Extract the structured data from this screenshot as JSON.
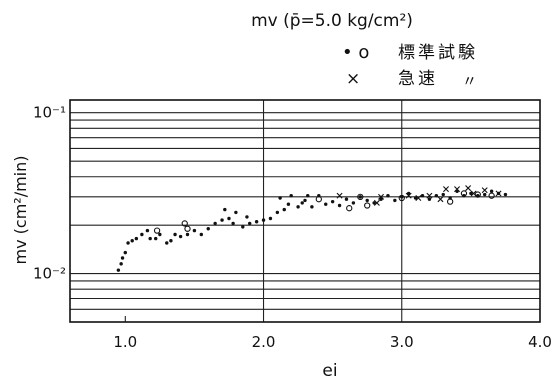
{
  "chart_data": {
    "type": "scatter",
    "title": "mv (p̄=5.0 kg/cm²)",
    "xlabel": "ei",
    "ylabel": "mv (cm²/min)",
    "xlim": [
      0.6,
      4.0
    ],
    "ylim": [
      0.005,
      0.12
    ],
    "y_scale": "log",
    "x_ticks": [
      "1.0",
      "2.0",
      "3.0",
      "4.0"
    ],
    "y_ticks": [
      "10⁻¹",
      "10⁻²"
    ],
    "legend_placement": "top-right",
    "grid": true,
    "series": [
      {
        "name": "標準試験",
        "marker": "dot",
        "values": [
          [
            0.95,
            0.0105
          ],
          [
            0.97,
            0.0115
          ],
          [
            0.98,
            0.0125
          ],
          [
            1.0,
            0.0135
          ],
          [
            1.02,
            0.0155
          ],
          [
            1.05,
            0.016
          ],
          [
            1.08,
            0.0165
          ],
          [
            1.12,
            0.0175
          ],
          [
            1.16,
            0.0185
          ],
          [
            1.18,
            0.0165
          ],
          [
            1.22,
            0.0165
          ],
          [
            1.25,
            0.0175
          ],
          [
            1.3,
            0.0155
          ],
          [
            1.33,
            0.016
          ],
          [
            1.36,
            0.0175
          ],
          [
            1.4,
            0.017
          ],
          [
            1.45,
            0.0175
          ],
          [
            1.5,
            0.0185
          ],
          [
            1.55,
            0.0175
          ],
          [
            1.6,
            0.019
          ],
          [
            1.65,
            0.0205
          ],
          [
            1.7,
            0.0215
          ],
          [
            1.72,
            0.025
          ],
          [
            1.75,
            0.022
          ],
          [
            1.78,
            0.0205
          ],
          [
            1.8,
            0.024
          ],
          [
            1.85,
            0.0195
          ],
          [
            1.88,
            0.0225
          ],
          [
            1.9,
            0.0205
          ],
          [
            1.95,
            0.021
          ],
          [
            2.0,
            0.0215
          ],
          [
            2.05,
            0.022
          ],
          [
            2.1,
            0.024
          ],
          [
            2.12,
            0.0295
          ],
          [
            2.15,
            0.025
          ],
          [
            2.18,
            0.027
          ],
          [
            2.2,
            0.0305
          ],
          [
            2.25,
            0.026
          ],
          [
            2.28,
            0.0275
          ],
          [
            2.3,
            0.0285
          ],
          [
            2.32,
            0.0305
          ],
          [
            2.35,
            0.026
          ],
          [
            2.4,
            0.0305
          ],
          [
            2.45,
            0.027
          ],
          [
            2.5,
            0.028
          ],
          [
            2.55,
            0.0265
          ],
          [
            2.6,
            0.029
          ],
          [
            2.65,
            0.0275
          ],
          [
            2.7,
            0.03
          ],
          [
            2.75,
            0.0285
          ],
          [
            2.8,
            0.0275
          ],
          [
            2.85,
            0.029
          ],
          [
            2.9,
            0.0305
          ],
          [
            2.95,
            0.0285
          ],
          [
            3.0,
            0.03
          ],
          [
            3.05,
            0.0315
          ],
          [
            3.1,
            0.0295
          ],
          [
            3.15,
            0.0305
          ],
          [
            3.2,
            0.029
          ],
          [
            3.25,
            0.0305
          ],
          [
            3.3,
            0.031
          ],
          [
            3.35,
            0.0295
          ],
          [
            3.4,
            0.0325
          ],
          [
            3.45,
            0.0305
          ],
          [
            3.5,
            0.0315
          ],
          [
            3.55,
            0.0305
          ],
          [
            3.6,
            0.031
          ],
          [
            3.65,
            0.0325
          ],
          [
            3.7,
            0.0315
          ],
          [
            3.75,
            0.031
          ]
        ]
      },
      {
        "name": "標準試験",
        "marker": "circle",
        "values": [
          [
            1.23,
            0.0185
          ],
          [
            1.43,
            0.0205
          ],
          [
            1.45,
            0.019
          ],
          [
            2.4,
            0.029
          ],
          [
            2.62,
            0.0255
          ],
          [
            2.7,
            0.03
          ],
          [
            2.75,
            0.0265
          ],
          [
            3.0,
            0.0295
          ],
          [
            3.35,
            0.028
          ],
          [
            3.45,
            0.0315
          ],
          [
            3.55,
            0.031
          ],
          [
            3.65,
            0.0305
          ]
        ]
      },
      {
        "name": "急速",
        "marker": "cross",
        "values": [
          [
            2.55,
            0.0305
          ],
          [
            2.82,
            0.0275
          ],
          [
            2.85,
            0.03
          ],
          [
            3.05,
            0.0305
          ],
          [
            3.12,
            0.0295
          ],
          [
            3.2,
            0.0305
          ],
          [
            3.28,
            0.029
          ],
          [
            3.32,
            0.0335
          ],
          [
            3.4,
            0.0335
          ],
          [
            3.48,
            0.034
          ],
          [
            3.52,
            0.0315
          ],
          [
            3.6,
            0.033
          ],
          [
            3.7,
            0.0315
          ]
        ]
      }
    ]
  },
  "legend": {
    "standard_marks": "• o",
    "standard_label": "標準試験",
    "rapid_mark": "×",
    "rapid_label": "急速",
    "ditto": "〃"
  }
}
